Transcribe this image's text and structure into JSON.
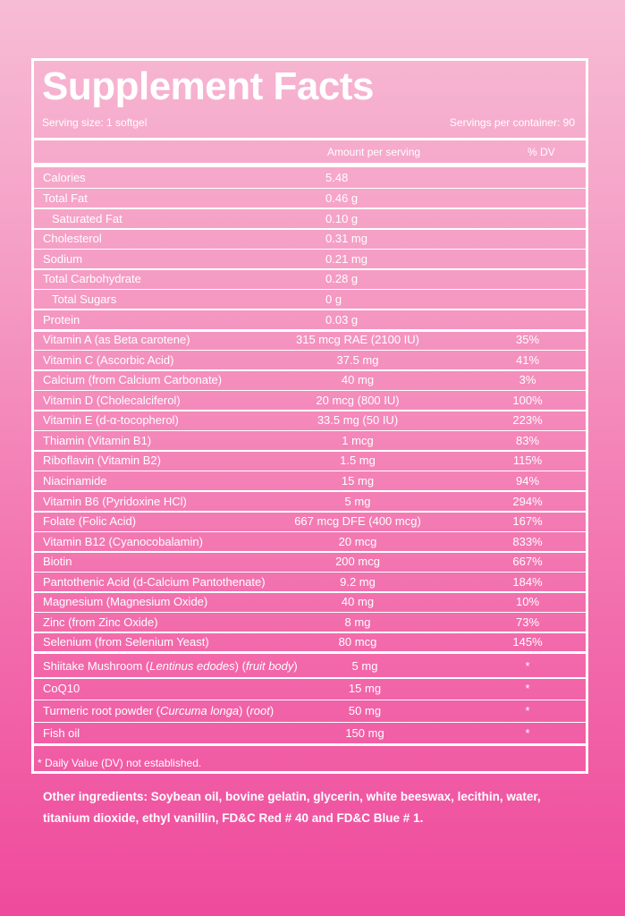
{
  "header": {
    "title": "Supplement Facts",
    "serving_size": "Serving size: 1 softgel",
    "servings_per_container": "Servings per container: 90"
  },
  "columns": {
    "amount": "Amount per serving",
    "dv": "% DV"
  },
  "sections": [
    {
      "rows": [
        {
          "name": "Calories",
          "amount": "5.48"
        },
        {
          "name": "Total Fat",
          "amount": "0.46 g"
        },
        {
          "name": "Saturated Fat",
          "amount": "0.10 g",
          "indent": true
        },
        {
          "name": "Cholesterol",
          "amount": "0.31 mg"
        },
        {
          "name": "Sodium",
          "amount": "0.21 mg"
        },
        {
          "name": "Total Carbohydrate",
          "amount": "0.28 g"
        },
        {
          "name": "Total Sugars",
          "amount": "0 g",
          "indent": true
        },
        {
          "name": "Protein",
          "amount": "0.03 g"
        }
      ]
    },
    {
      "rows": [
        {
          "name": "Vitamin A (as Beta carotene)",
          "amount": "315 mcg RAE (2100 IU)",
          "dv": "35%"
        },
        {
          "name": "Vitamin C (Ascorbic Acid)",
          "amount": "37.5 mg",
          "dv": "41%"
        },
        {
          "name": "Calcium (from Calcium Carbonate)",
          "amount": "40 mg",
          "dv": "3%"
        },
        {
          "name": "Vitamin D (Cholecalciferol)",
          "amount": "20 mcg (800 IU)",
          "dv": "100%"
        },
        {
          "name": "Vitamin E (d-α-tocopherol)",
          "amount": "33.5 mg (50 IU)",
          "dv": "223%"
        },
        {
          "name": "Thiamin (Vitamin B1)",
          "amount": "1 mcg",
          "dv": "83%"
        },
        {
          "name": "Riboflavin (Vitamin B2)",
          "amount": "1.5 mg",
          "dv": "115%"
        },
        {
          "name": "Niacinamide",
          "amount": "15 mg",
          "dv": "94%"
        },
        {
          "name": "Vitamin B6 (Pyridoxine HCl)",
          "amount": "5 mg",
          "dv": "294%"
        },
        {
          "name": "Folate (Folic Acid)",
          "amount": "667 mcg DFE (400 mcg)",
          "dv": "167%"
        },
        {
          "name": "Vitamin B12 (Cyanocobalamin)",
          "amount": "20 mcg",
          "dv": "833%"
        },
        {
          "name": "Biotin",
          "amount": "200 mcg",
          "dv": "667%"
        },
        {
          "name": "Pantothenic Acid (d-Calcium Pantothenate)",
          "amount": "9.2 mg",
          "dv": "184%"
        },
        {
          "name": "Magnesium (Magnesium Oxide)",
          "amount": "40 mg",
          "dv": "10%"
        },
        {
          "name": "Zinc (from Zinc Oxide)",
          "amount": "8 mg",
          "dv": "73%"
        },
        {
          "name": "Selenium (from Selenium Yeast)",
          "amount": "80 mcg",
          "dv": "145%"
        }
      ]
    },
    {
      "rows": [
        {
          "name_parts": [
            {
              "text": "Shiitake Mushroom ("
            },
            {
              "text": "Lentinus edodes",
              "italic": true
            },
            {
              "text": ") ("
            },
            {
              "text": "fruit body",
              "italic": true
            },
            {
              "text": ")"
            }
          ],
          "amount": "5 mg",
          "dv": "*"
        },
        {
          "name": "CoQ10",
          "amount": "15 mg",
          "dv": "*"
        },
        {
          "name_parts": [
            {
              "text": "Turmeric root powder ("
            },
            {
              "text": "Curcuma longa",
              "italic": true
            },
            {
              "text": ") ("
            },
            {
              "text": "root",
              "italic": true
            },
            {
              "text": ")"
            }
          ],
          "amount": "50 mg",
          "dv": "*"
        },
        {
          "name": "Fish oil",
          "amount": "150 mg",
          "dv": "*"
        }
      ]
    }
  ],
  "footnote": "* Daily Value (DV) not established.",
  "other_ingredients": "Other ingredients: Soybean oil, bovine gelatin, glycerin, white beeswax, lecithin, water, titanium dioxide, ethyl vanillin, FD&C Red # 40 and FD&C Blue # 1."
}
